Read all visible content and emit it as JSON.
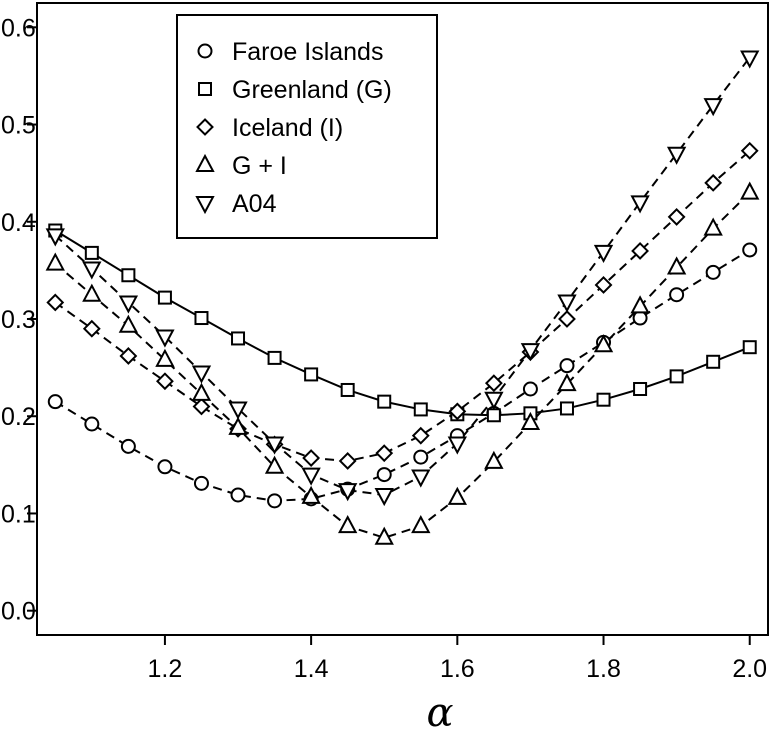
{
  "chart_data": {
    "type": "line",
    "title": "",
    "xlabel": "α",
    "ylabel": "",
    "xlim": [
      1.025,
      2.025
    ],
    "ylim": [
      -0.025,
      0.625
    ],
    "xticks": [
      1.2,
      1.4,
      1.6,
      1.8,
      2.0
    ],
    "xtick_labels": [
      "1.2",
      "1.4",
      "1.6",
      "1.8",
      "2.0"
    ],
    "yticks": [
      0.0,
      0.1,
      0.2,
      0.3,
      0.4,
      0.5,
      0.6
    ],
    "ytick_labels": [
      "0.0",
      "0.1",
      "0.2",
      "0.3",
      "0.4",
      "0.5",
      "0.6"
    ],
    "grid": false,
    "legend_position": "top-left",
    "x": [
      1.05,
      1.1,
      1.15,
      1.2,
      1.25,
      1.3,
      1.35,
      1.4,
      1.45,
      1.5,
      1.55,
      1.6,
      1.65,
      1.7,
      1.75,
      1.8,
      1.85,
      1.9,
      1.95,
      2.0
    ],
    "series": [
      {
        "name": "Faroe Islands",
        "marker": "circle",
        "line_style": "dashed",
        "values": [
          0.215,
          0.192,
          0.169,
          0.148,
          0.131,
          0.119,
          0.113,
          0.115,
          0.125,
          0.14,
          0.158,
          0.18,
          0.203,
          0.228,
          0.252,
          0.276,
          0.301,
          0.325,
          0.348,
          0.371
        ]
      },
      {
        "name": "Greenland (G)",
        "marker": "square",
        "line_style": "solid",
        "values": [
          0.391,
          0.368,
          0.345,
          0.322,
          0.301,
          0.28,
          0.26,
          0.243,
          0.227,
          0.215,
          0.207,
          0.202,
          0.201,
          0.203,
          0.208,
          0.217,
          0.228,
          0.241,
          0.256,
          0.271
        ]
      },
      {
        "name": "Iceland (I)",
        "marker": "diamond",
        "line_style": "dashed",
        "values": [
          0.317,
          0.29,
          0.262,
          0.236,
          0.21,
          0.187,
          0.171,
          0.157,
          0.154,
          0.162,
          0.18,
          0.205,
          0.234,
          0.266,
          0.3,
          0.335,
          0.37,
          0.405,
          0.44,
          0.473
        ]
      },
      {
        "name": "G + I",
        "marker": "triangle-up",
        "line_style": "dashed",
        "values": [
          0.357,
          0.325,
          0.293,
          0.258,
          0.223,
          0.188,
          0.148,
          0.117,
          0.087,
          0.075,
          0.087,
          0.116,
          0.153,
          0.193,
          0.233,
          0.273,
          0.313,
          0.353,
          0.393,
          0.43
        ]
      },
      {
        "name": "A04",
        "marker": "triangle-down",
        "line_style": "dashed",
        "values": [
          0.386,
          0.352,
          0.317,
          0.282,
          0.245,
          0.208,
          0.172,
          0.14,
          0.124,
          0.119,
          0.138,
          0.172,
          0.218,
          0.268,
          0.318,
          0.369,
          0.42,
          0.47,
          0.52,
          0.569
        ]
      }
    ]
  }
}
